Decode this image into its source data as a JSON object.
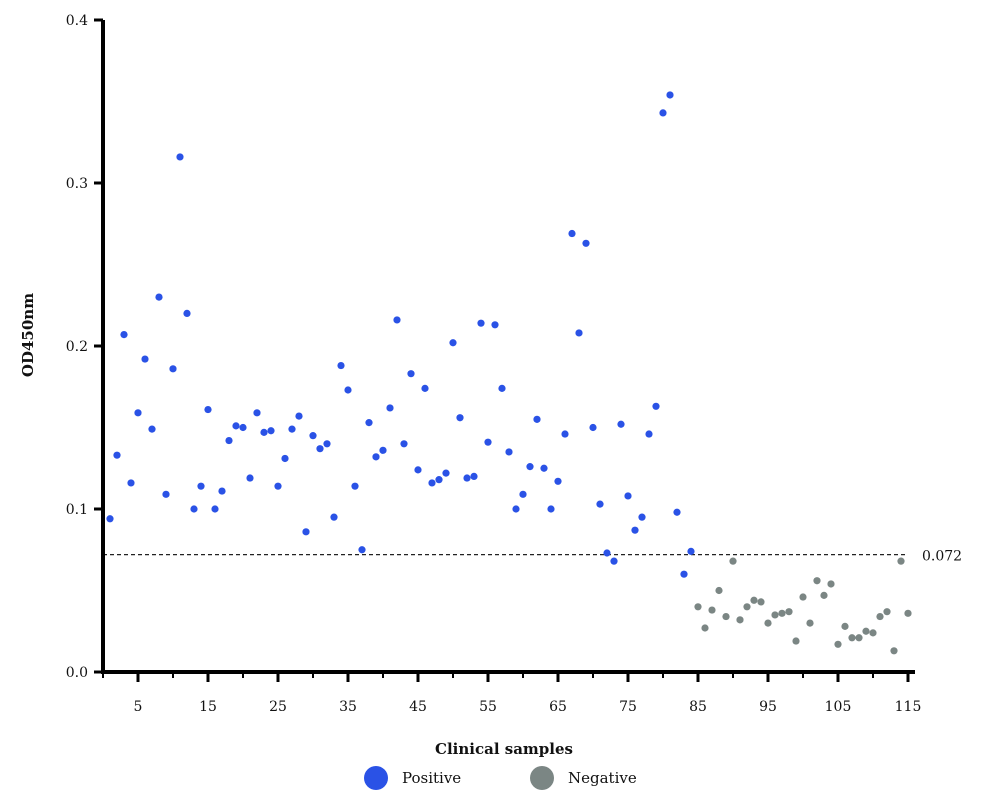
{
  "chart_data": {
    "type": "scatter",
    "title": "",
    "xlabel": "Clinical samples",
    "ylabel": "OD450nm",
    "xlim": [
      0,
      116
    ],
    "ylim": [
      0,
      0.4
    ],
    "xticks": [
      5,
      15,
      25,
      35,
      45,
      55,
      65,
      75,
      85,
      95,
      105,
      115
    ],
    "yticks": [
      0.0,
      0.1,
      0.2,
      0.3,
      0.4
    ],
    "ytick_labels": [
      "0.0",
      "0.1",
      "0.2",
      "0.3",
      "0.4"
    ],
    "grid": false,
    "legend_position": "bottom",
    "cutoff": {
      "value": 0.072,
      "label": "0.072"
    },
    "series": [
      {
        "name": "Positive",
        "color": "#2a52e6",
        "x": [
          1,
          2,
          3,
          4,
          5,
          6,
          7,
          8,
          9,
          10,
          11,
          12,
          13,
          14,
          15,
          16,
          17,
          18,
          19,
          20,
          21,
          22,
          23,
          24,
          25,
          26,
          27,
          28,
          29,
          30,
          31,
          32,
          33,
          34,
          35,
          36,
          37,
          38,
          39,
          40,
          41,
          42,
          43,
          44,
          45,
          46,
          47,
          48,
          49,
          50,
          51,
          52,
          53,
          54,
          55,
          56,
          57,
          58,
          59,
          60,
          61,
          62,
          63,
          64,
          65,
          66,
          67,
          68,
          69,
          70,
          71,
          72,
          73,
          74,
          75,
          76,
          77,
          78,
          79,
          80,
          81,
          82,
          83,
          84
        ],
        "y": [
          0.094,
          0.133,
          0.207,
          0.116,
          0.159,
          0.192,
          0.149,
          0.23,
          0.109,
          0.186,
          0.316,
          0.22,
          0.1,
          0.114,
          0.161,
          0.1,
          0.111,
          0.142,
          0.151,
          0.15,
          0.119,
          0.159,
          0.147,
          0.148,
          0.114,
          0.131,
          0.149,
          0.157,
          0.086,
          0.145,
          0.137,
          0.14,
          0.095,
          0.188,
          0.173,
          0.114,
          0.075,
          0.153,
          0.132,
          0.136,
          0.162,
          0.216,
          0.14,
          0.183,
          0.124,
          0.174,
          0.116,
          0.118,
          0.122,
          0.202,
          0.156,
          0.119,
          0.12,
          0.214,
          0.141,
          0.213,
          0.174,
          0.135,
          0.1,
          0.109,
          0.126,
          0.155,
          0.125,
          0.1,
          0.117,
          0.146,
          0.269,
          0.208,
          0.263,
          0.15,
          0.103,
          0.073,
          0.068,
          0.152,
          0.108,
          0.087,
          0.095,
          0.146,
          0.163,
          0.343,
          0.354,
          0.098,
          0.06,
          0.074
        ]
      },
      {
        "name": "Negative",
        "color": "#7b8684",
        "x": [
          85,
          86,
          87,
          88,
          89,
          90,
          91,
          92,
          93,
          94,
          95,
          96,
          97,
          98,
          99,
          100,
          101,
          102,
          103,
          104,
          105,
          106,
          107,
          108,
          109,
          110,
          111,
          112,
          113,
          114,
          115
        ],
        "y": [
          0.04,
          0.027,
          0.038,
          0.05,
          0.034,
          0.068,
          0.032,
          0.04,
          0.044,
          0.043,
          0.03,
          0.035,
          0.036,
          0.037,
          0.019,
          0.046,
          0.03,
          0.056,
          0.047,
          0.054,
          0.017,
          0.028,
          0.021,
          0.021,
          0.025,
          0.024,
          0.034,
          0.037,
          0.013,
          0.068,
          0.036
        ]
      }
    ]
  }
}
